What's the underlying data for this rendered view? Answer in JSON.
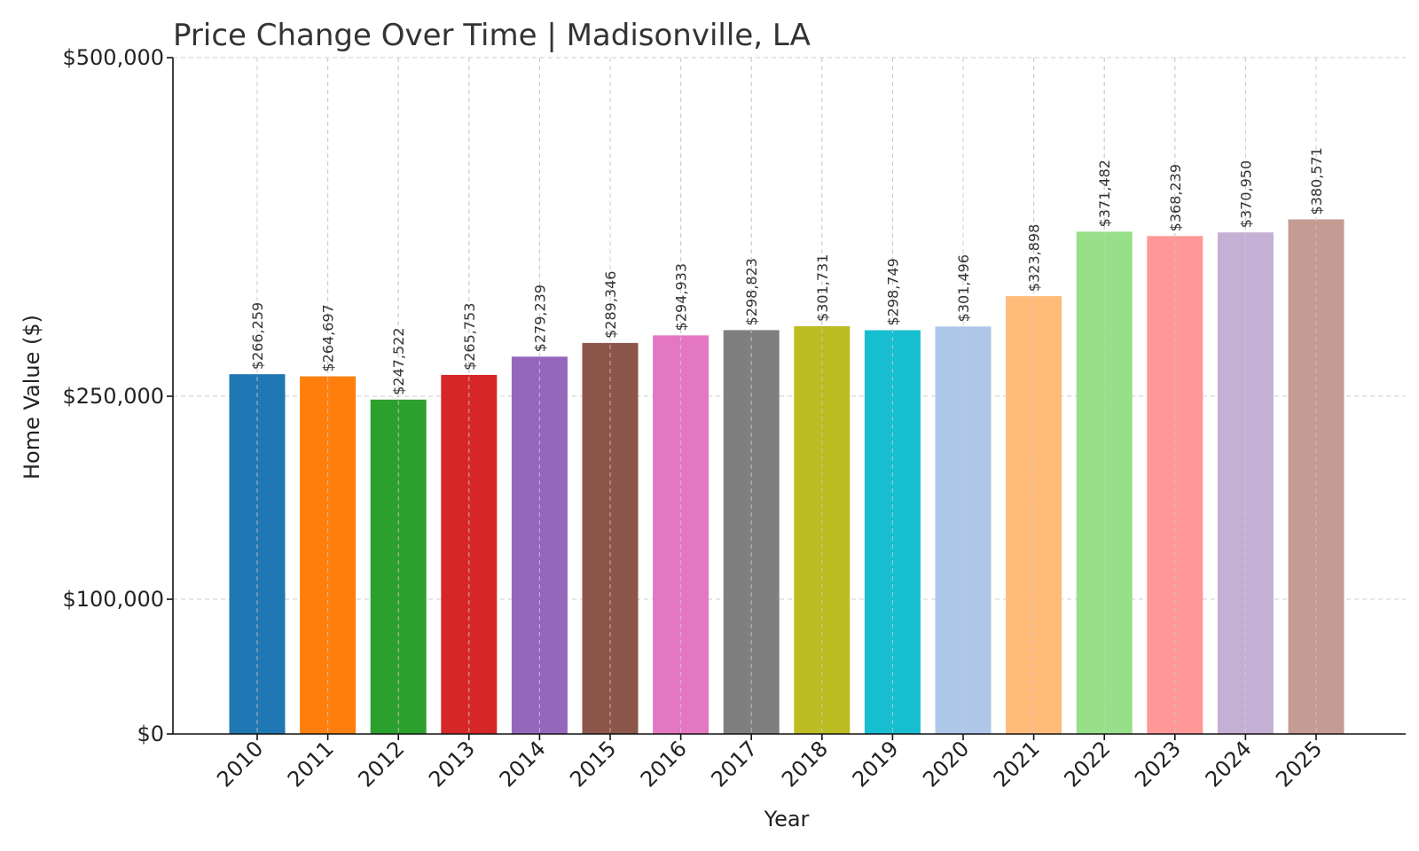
{
  "chart_data": {
    "type": "bar",
    "title": "Price Change Over Time | Madisonville, LA",
    "xlabel": "Year",
    "ylabel": "Home Value ($)",
    "ylim": [
      0,
      500000
    ],
    "y_scale": "symlog-like",
    "y_ticks": [
      {
        "value": 0,
        "label": "$0"
      },
      {
        "value": 100000,
        "label": "$100,000"
      },
      {
        "value": 250000,
        "label": "$250,000"
      },
      {
        "value": 500000,
        "label": "$500,000"
      }
    ],
    "grid": true,
    "categories": [
      "2010",
      "2011",
      "2012",
      "2013",
      "2014",
      "2015",
      "2016",
      "2017",
      "2018",
      "2019",
      "2020",
      "2021",
      "2022",
      "2023",
      "2024",
      "2025"
    ],
    "values": [
      266259,
      264697,
      247522,
      265753,
      279239,
      289346,
      294933,
      298823,
      301731,
      298749,
      301496,
      323898,
      371482,
      368239,
      370950,
      380571
    ],
    "value_labels": [
      "$266,259",
      "$264,697",
      "$247,522",
      "$265,753",
      "$279,239",
      "$289,346",
      "$294,933",
      "$298,823",
      "$301,731",
      "$298,749",
      "$301,496",
      "$323,898",
      "$371,482",
      "$368,239",
      "$370,950",
      "$380,571"
    ],
    "colors": [
      "#1f77b4",
      "#ff7f0e",
      "#2ca02c",
      "#d62728",
      "#9467bd",
      "#8c564b",
      "#e377c2",
      "#7f7f7f",
      "#bcbd22",
      "#17becf",
      "#aec7e8",
      "#ffbb78",
      "#98df8a",
      "#ff9896",
      "#c5b0d5",
      "#c49c94"
    ]
  }
}
